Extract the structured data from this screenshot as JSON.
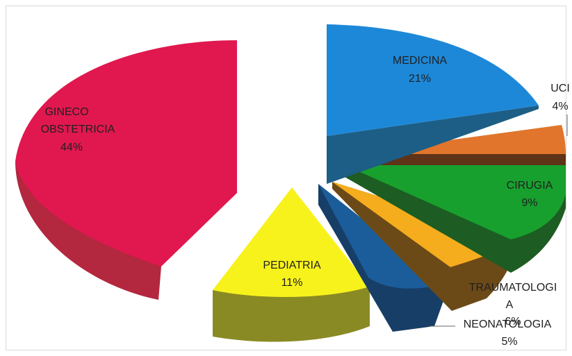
{
  "chart_data": {
    "type": "pie",
    "style": "3d-exploded",
    "title": "",
    "legend": "none",
    "slices": [
      {
        "label": "MEDICINA",
        "value": 21,
        "display": "21%",
        "color": "#1e88d8",
        "side_color": "#1c5e86"
      },
      {
        "label": "UCI",
        "value": 4,
        "display": "4%",
        "color": "#e0752b",
        "side_color": "#5e3318"
      },
      {
        "label": "CIRUGIA",
        "value": 9,
        "display": "9%",
        "color": "#17a02e",
        "side_color": "#1d5c22"
      },
      {
        "label": "TRAUMATOLOGIA",
        "value": 6,
        "display": "6%",
        "color": "#f5ad1d",
        "side_color": "#6b4a18"
      },
      {
        "label": "NEONATOLOGIA",
        "value": 5,
        "display": "5%",
        "color": "#1b5d9a",
        "side_color": "#173e66"
      },
      {
        "label": "PEDIATRIA",
        "value": 11,
        "display": "11%",
        "color": "#f7f21b",
        "side_color": "#8a8a25"
      },
      {
        "label": "GINECO OBSTETRICIA",
        "value": 44,
        "display": "44%",
        "color": "#e0184f",
        "side_color": "#b3273f"
      }
    ]
  }
}
